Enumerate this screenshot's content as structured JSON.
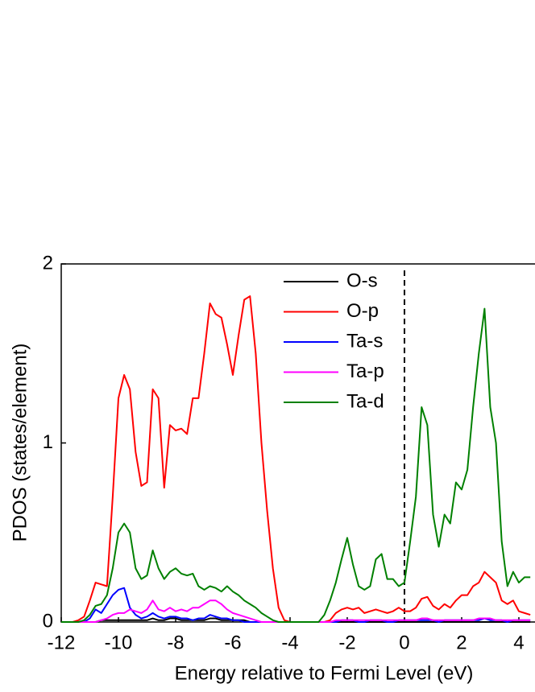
{
  "chart_data": {
    "type": "line",
    "xlabel": "Energy relative to Fermi Level (eV)",
    "ylabel": "PDOS (states/element)",
    "x": [
      -12.0,
      -11.8,
      -11.6,
      -11.4,
      -11.2,
      -11.0,
      -10.8,
      -10.6,
      -10.4,
      -10.2,
      -10.0,
      -9.8,
      -9.6,
      -9.4,
      -9.2,
      -9.0,
      -8.8,
      -8.6,
      -8.4,
      -8.2,
      -8.0,
      -7.8,
      -7.6,
      -7.4,
      -7.2,
      -7.0,
      -6.8,
      -6.6,
      -6.4,
      -6.2,
      -6.0,
      -5.8,
      -5.6,
      -5.4,
      -5.2,
      -5.0,
      -4.8,
      -4.6,
      -4.4,
      -4.2,
      -4.0,
      -3.8,
      -3.6,
      -3.4,
      -3.2,
      -3.0,
      -2.8,
      -2.6,
      -2.4,
      -2.2,
      -2.0,
      -1.8,
      -1.6,
      -1.4,
      -1.2,
      -1.0,
      -0.8,
      -0.6,
      -0.4,
      -0.2,
      0.0,
      0.2,
      0.4,
      0.6,
      0.8,
      1.0,
      1.2,
      1.4,
      1.6,
      1.8,
      2.0,
      2.2,
      2.4,
      2.6,
      2.8,
      3.0,
      3.2,
      3.4,
      3.6,
      3.8,
      4.0,
      4.2,
      4.4
    ],
    "series": [
      {
        "name": "O-s",
        "color": "#000000",
        "values": [
          0,
          0,
          0,
          0,
          0,
          0,
          0,
          0.01,
          0.01,
          0.01,
          0.01,
          0.01,
          0.01,
          0.01,
          0.01,
          0.01,
          0.02,
          0.01,
          0.01,
          0.02,
          0.02,
          0.01,
          0.01,
          0.01,
          0.01,
          0.01,
          0.02,
          0.02,
          0.01,
          0.01,
          0.01,
          0.01,
          0.01,
          0,
          0,
          0,
          0,
          0,
          0,
          0,
          0,
          0,
          0,
          0,
          0,
          0,
          0,
          0,
          0,
          0,
          0,
          0,
          0,
          0,
          0,
          0,
          0,
          0,
          0,
          0,
          0,
          0,
          0,
          0,
          0,
          0,
          0,
          0,
          0,
          0,
          0,
          0,
          0,
          0,
          0,
          0,
          0,
          0,
          0,
          0,
          0,
          0,
          0
        ]
      },
      {
        "name": "O-p",
        "color": "#ff0000",
        "values": [
          0,
          0,
          0,
          0.01,
          0.03,
          0.12,
          0.22,
          0.21,
          0.2,
          0.7,
          1.25,
          1.38,
          1.3,
          0.95,
          0.76,
          0.78,
          1.3,
          1.25,
          0.75,
          1.1,
          1.07,
          1.08,
          1.05,
          1.25,
          1.25,
          1.5,
          1.78,
          1.72,
          1.7,
          1.55,
          1.38,
          1.6,
          1.8,
          1.82,
          1.5,
          1.0,
          0.62,
          0.3,
          0.08,
          0.01,
          0,
          0,
          0,
          0,
          0,
          0,
          0,
          0.01,
          0.05,
          0.07,
          0.08,
          0.07,
          0.08,
          0.05,
          0.06,
          0.07,
          0.06,
          0.05,
          0.06,
          0.08,
          0.06,
          0.06,
          0.08,
          0.13,
          0.14,
          0.09,
          0.07,
          0.1,
          0.08,
          0.12,
          0.15,
          0.15,
          0.2,
          0.22,
          0.28,
          0.25,
          0.22,
          0.12,
          0.1,
          0.12,
          0.06,
          0.05,
          0.04
        ]
      },
      {
        "name": "Ta-s",
        "color": "#0000ff",
        "values": [
          0,
          0,
          0,
          0,
          0,
          0.02,
          0.07,
          0.05,
          0.1,
          0.15,
          0.18,
          0.19,
          0.08,
          0.04,
          0.02,
          0.03,
          0.05,
          0.03,
          0.02,
          0.03,
          0.03,
          0.02,
          0.02,
          0.01,
          0.02,
          0.02,
          0.04,
          0.03,
          0.02,
          0.02,
          0.01,
          0.01,
          0,
          0,
          0,
          0,
          0,
          0,
          0,
          0,
          0,
          0,
          0,
          0,
          0,
          0,
          0,
          0,
          0,
          0.01,
          0.01,
          0.01,
          0,
          0,
          0.01,
          0.01,
          0.01,
          0,
          0,
          0.01,
          0.01,
          0.01,
          0.01,
          0.01,
          0.01,
          0.01,
          0,
          0.01,
          0.01,
          0.01,
          0.01,
          0.01,
          0.01,
          0.01,
          0.02,
          0.01,
          0.01,
          0.01,
          0,
          0.01,
          0.01,
          0.01,
          0.01
        ]
      },
      {
        "name": "Ta-p",
        "color": "#ff00ff",
        "values": [
          0,
          0,
          0,
          0,
          0,
          0,
          0,
          0.01,
          0.02,
          0.04,
          0.05,
          0.05,
          0.07,
          0.06,
          0.05,
          0.07,
          0.12,
          0.07,
          0.06,
          0.08,
          0.06,
          0.07,
          0.06,
          0.08,
          0.08,
          0.1,
          0.12,
          0.12,
          0.1,
          0.07,
          0.05,
          0.04,
          0.03,
          0.02,
          0.01,
          0,
          0,
          0,
          0,
          0,
          0,
          0,
          0,
          0,
          0,
          0,
          0,
          0,
          0.01,
          0.01,
          0.01,
          0.01,
          0.01,
          0.01,
          0.01,
          0.01,
          0.01,
          0.01,
          0.01,
          0.01,
          0.01,
          0.01,
          0.01,
          0.02,
          0.02,
          0.01,
          0.01,
          0.01,
          0.01,
          0.01,
          0.01,
          0.01,
          0.01,
          0.02,
          0.02,
          0.02,
          0.01,
          0.01,
          0.01,
          0.01,
          0.01,
          0.01,
          0.01
        ]
      },
      {
        "name": "Ta-d",
        "color": "#008000",
        "values": [
          0,
          0,
          0,
          0,
          0.01,
          0.04,
          0.09,
          0.1,
          0.15,
          0.3,
          0.5,
          0.55,
          0.5,
          0.3,
          0.24,
          0.26,
          0.4,
          0.3,
          0.24,
          0.28,
          0.3,
          0.27,
          0.26,
          0.27,
          0.2,
          0.18,
          0.2,
          0.19,
          0.17,
          0.2,
          0.17,
          0.15,
          0.12,
          0.1,
          0.08,
          0.05,
          0.03,
          0.01,
          0,
          0,
          0,
          0,
          0,
          0,
          0,
          0,
          0.04,
          0.12,
          0.22,
          0.35,
          0.47,
          0.32,
          0.2,
          0.18,
          0.2,
          0.35,
          0.38,
          0.24,
          0.24,
          0.2,
          0.22,
          0.45,
          0.7,
          1.2,
          1.1,
          0.6,
          0.42,
          0.6,
          0.55,
          0.78,
          0.74,
          0.85,
          1.2,
          1.5,
          1.75,
          1.2,
          1.0,
          0.45,
          0.2,
          0.28,
          0.22,
          0.25,
          0.25
        ]
      }
    ],
    "xlim": [
      -12,
      4.55
    ],
    "xticks": [
      -12,
      -10,
      -8,
      -6,
      -4,
      -2,
      0,
      2,
      4
    ],
    "ylim": [
      0,
      2
    ],
    "yticks": [
      0,
      1,
      2
    ],
    "vline": 0,
    "legend": "upper center"
  }
}
